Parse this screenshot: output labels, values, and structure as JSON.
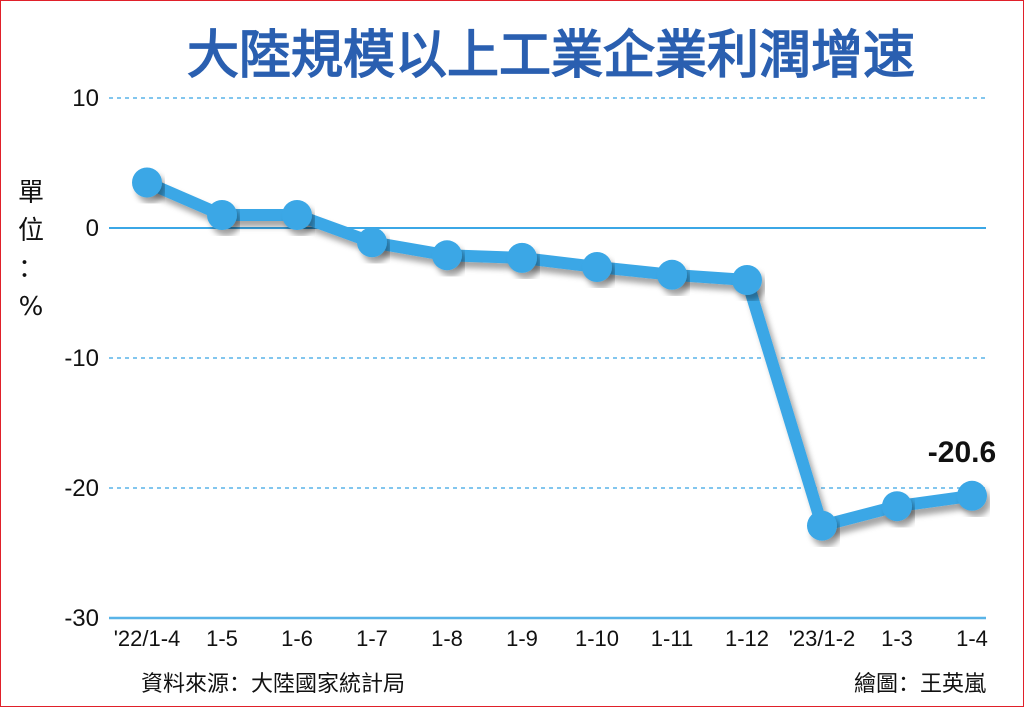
{
  "chart_data": {
    "type": "line",
    "title": "大陸規模以上工業企業利潤增速",
    "ylabel": "單位：%",
    "ylim": [
      -30,
      10
    ],
    "yticks": [
      "10",
      "0",
      "-10",
      "-20",
      "-30"
    ],
    "categories": [
      "'22/1-4",
      "1-5",
      "1-6",
      "1-7",
      "1-8",
      "1-9",
      "1-10",
      "1-11",
      "1-12",
      "'23/1-2",
      "1-3",
      "1-4"
    ],
    "values": [
      3.5,
      1.0,
      1.0,
      -1.1,
      -2.1,
      -2.3,
      -3.0,
      -3.6,
      -4.0,
      -22.9,
      -21.4,
      -20.6
    ],
    "data_labels": [
      "-20.6"
    ],
    "grid": true,
    "colors": {
      "line": "#3ba7e6",
      "grid": "#59b4e8",
      "zero_line": "#3ba7e6",
      "title": "#2a5fb0"
    }
  },
  "footer": {
    "source": "資料來源：大陸國家統計局",
    "credit": "繪圖：王英嵐"
  }
}
